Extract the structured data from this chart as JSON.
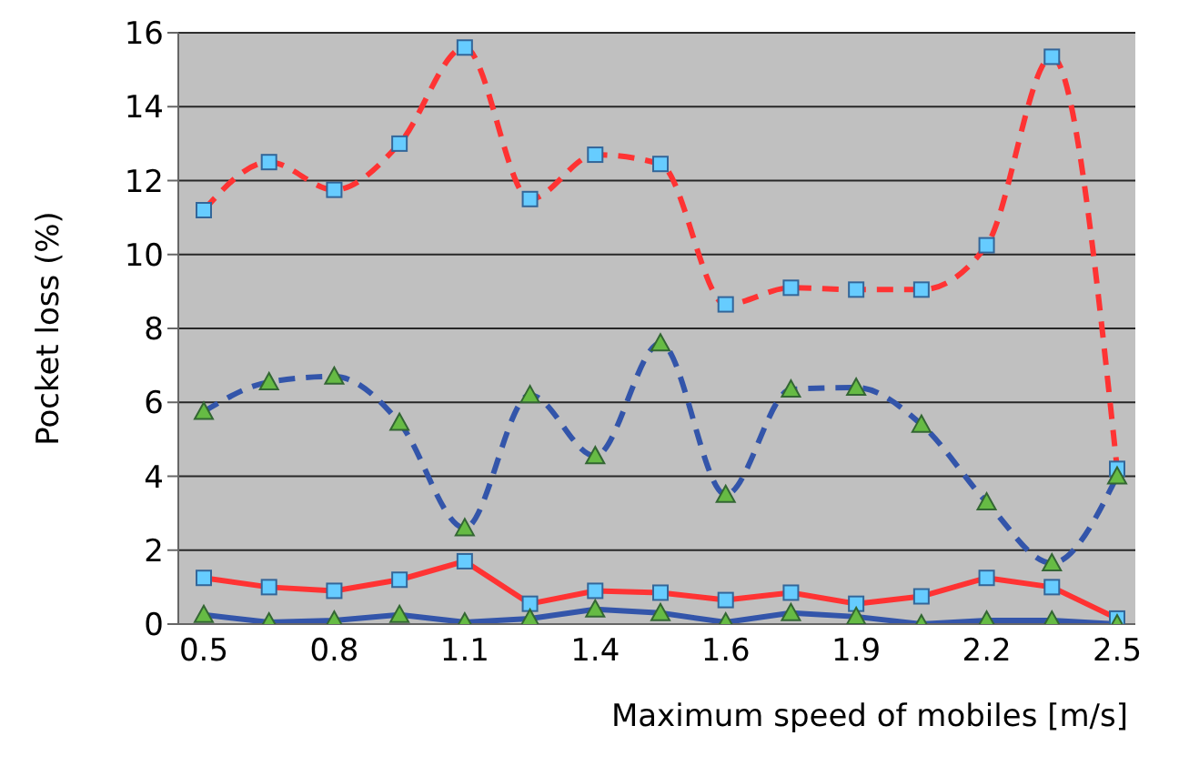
{
  "chart_data": {
    "type": "line",
    "xlabel": "Maximum speed of mobiles [m/s]",
    "ylabel": "Pocket loss (%)",
    "categories": [
      "0.5",
      null,
      "0.8",
      null,
      "1.1",
      null,
      "1.4",
      null,
      "1.6",
      null,
      "1.9",
      null,
      "2.2",
      null,
      "2.5"
    ],
    "ylim": [
      0,
      16
    ],
    "yticks": [
      0,
      2,
      4,
      6,
      8,
      10,
      12,
      14,
      16
    ],
    "grid": "y",
    "legend": false,
    "series": [
      {
        "color": "#ff3333",
        "line_style": "dashed",
        "marker": "square",
        "values": [
          11.2,
          12.5,
          11.75,
          13,
          15.6,
          11.5,
          12.7,
          12.45,
          8.65,
          9.1,
          9.05,
          9.05,
          10.25,
          15.35,
          4.2
        ]
      },
      {
        "color": "#3355aa",
        "line_style": "dashed",
        "marker": "triangle",
        "values": [
          5.75,
          6.55,
          6.7,
          5.45,
          2.6,
          6.2,
          4.55,
          7.6,
          3.5,
          6.35,
          6.4,
          5.4,
          3.3,
          1.65,
          4.0
        ]
      },
      {
        "color": "#ff3333",
        "line_style": "solid",
        "marker": "square",
        "values": [
          1.25,
          1.0,
          0.9,
          1.2,
          1.7,
          0.55,
          0.9,
          0.85,
          0.65,
          0.85,
          0.55,
          0.75,
          1.25,
          1.0,
          0.15
        ]
      },
      {
        "color": "#3355aa",
        "line_style": "solid",
        "marker": "triangle",
        "values": [
          0.25,
          0.05,
          0.1,
          0.25,
          0.05,
          0.15,
          0.4,
          0.3,
          0.05,
          0.3,
          0.2,
          0,
          0.1,
          0.1,
          0
        ]
      }
    ]
  }
}
